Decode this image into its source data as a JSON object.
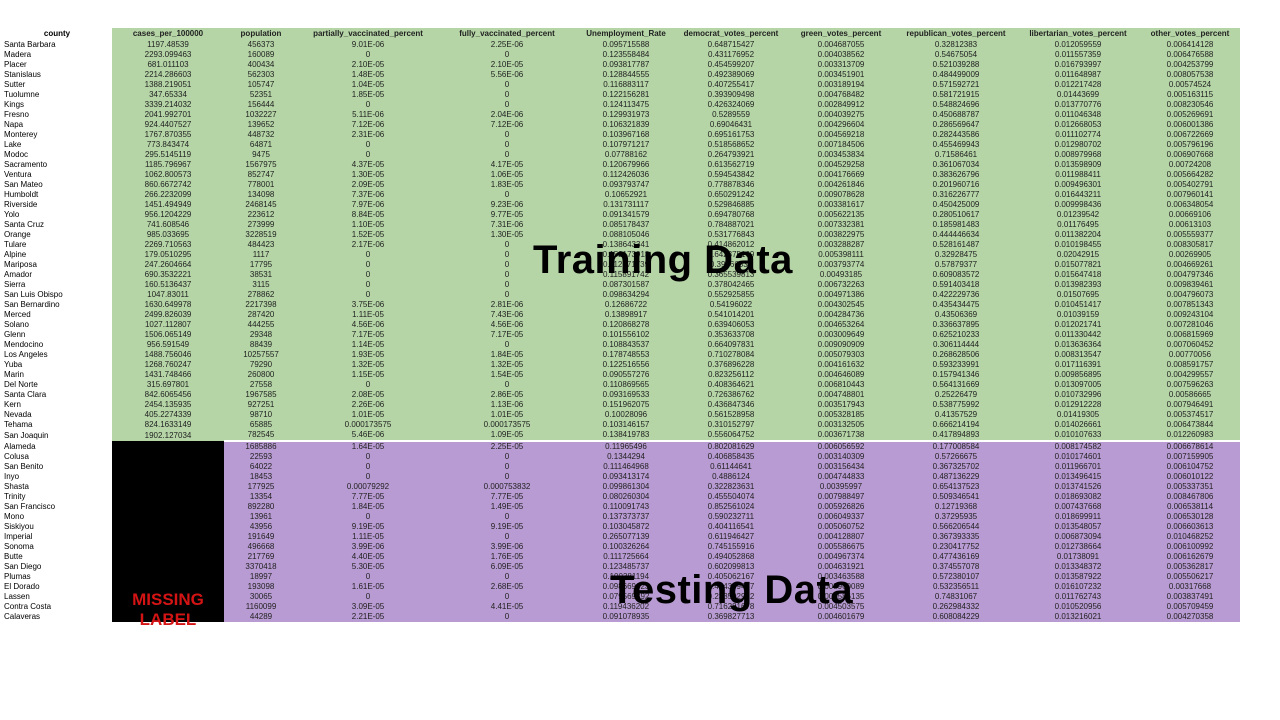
{
  "columns": [
    "county",
    "cases_per_100000",
    "population",
    "partially_vaccinated_percent",
    "fully_vaccinated_percent",
    "Unemployment_Rate",
    "democrat_votes_percent",
    "green_votes_percent",
    "republican_votes_percent",
    "libertarian_votes_percent",
    "other_votes_percent"
  ],
  "training_label": "Training Data",
  "testing_label": "Testing Data",
  "missing_label": "MISSING LABEL",
  "colors": {
    "training": "#b5d5a6",
    "testing": "#b89bd2",
    "missing_block": "#000000",
    "missing_text": "#d41414"
  },
  "training_rows": [
    [
      "Santa Barbara",
      "1197.48539",
      "456373",
      "9.01E-06",
      "2.25E-06",
      "0.095715588",
      "0.648715427",
      "0.004687055",
      "0.32812383",
      "0.012059559",
      "0.006414128"
    ],
    [
      "Madera",
      "2293.099463",
      "160089",
      "0",
      "0",
      "0.123558484",
      "0.431176952",
      "0.004038562",
      "0.54675054",
      "0.011557359",
      "0.006476588"
    ],
    [
      "Placer",
      "681.011103",
      "400434",
      "2.10E-05",
      "2.10E-05",
      "0.093817787",
      "0.454599207",
      "0.003313709",
      "0.521039288",
      "0.016793997",
      "0.004253799"
    ],
    [
      "Stanislaus",
      "2214.286603",
      "562303",
      "1.48E-05",
      "5.56E-06",
      "0.128844555",
      "0.492389069",
      "0.003451901",
      "0.484499009",
      "0.011648987",
      "0.008057538"
    ],
    [
      "Sutter",
      "1388.219051",
      "105747",
      "1.04E-05",
      "0",
      "0.116883117",
      "0.407255417",
      "0.003189194",
      "0.571592721",
      "0.012217428",
      "0.00574524"
    ],
    [
      "Tuolumne",
      "347.65334",
      "52351",
      "1.85E-05",
      "0",
      "0.122156281",
      "0.393909498",
      "0.004768482",
      "0.581721915",
      "0.01443699",
      "0.005163115"
    ],
    [
      "Kings",
      "3339.214032",
      "156444",
      "0",
      "0",
      "0.124113475",
      "0.426324069",
      "0.002849912",
      "0.548824696",
      "0.013770776",
      "0.008230546"
    ],
    [
      "Fresno",
      "2041.992701",
      "1032227",
      "5.11E-06",
      "2.04E-06",
      "0.129931973",
      "0.5289559",
      "0.004039275",
      "0.450688787",
      "0.011046348",
      "0.005269691"
    ],
    [
      "Napa",
      "924.4407527",
      "139652",
      "7.12E-06",
      "7.12E-06",
      "0.106321839",
      "0.69046431",
      "0.004296604",
      "0.286569647",
      "0.012668053",
      "0.006001386"
    ],
    [
      "Monterey",
      "1767.870355",
      "448732",
      "2.31E-06",
      "0",
      "0.103967168",
      "0.695161753",
      "0.004569218",
      "0.282443586",
      "0.011102774",
      "0.006722669"
    ],
    [
      "Lake",
      "773.843474",
      "64871",
      "0",
      "0",
      "0.107971217",
      "0.518568652",
      "0.007184506",
      "0.455469943",
      "0.012980702",
      "0.005796196"
    ],
    [
      "Modoc",
      "295.5145119",
      "9475",
      "0",
      "0",
      "0.07788162",
      "0.264793921",
      "0.003453834",
      "0.71586461",
      "0.008979968",
      "0.006907668"
    ],
    [
      "Sacramento",
      "1185.796967",
      "1567975",
      "4.37E-05",
      "4.17E-05",
      "0.120679966",
      "0.613562719",
      "0.004529258",
      "0.361067034",
      "0.013598909",
      "0.00724208"
    ],
    [
      "Ventura",
      "1062.800573",
      "852747",
      "1.30E-05",
      "1.06E-05",
      "0.112426036",
      "0.594543842",
      "0.004176669",
      "0.383626796",
      "0.011988411",
      "0.005664282"
    ],
    [
      "San Mateo",
      "860.6672742",
      "778001",
      "2.09E-05",
      "1.83E-05",
      "0.093793747",
      "0.778878346",
      "0.004261846",
      "0.201960716",
      "0.009496301",
      "0.005402791"
    ],
    [
      "Humboldt",
      "266.2232099",
      "134098",
      "7.37E-06",
      "0",
      "0.10652921",
      "0.650291242",
      "0.009078628",
      "0.316226777",
      "0.016443211",
      "0.007960141"
    ],
    [
      "Riverside",
      "1451.494949",
      "2468145",
      "7.97E-06",
      "9.23E-06",
      "0.131731117",
      "0.529846885",
      "0.003381617",
      "0.450425009",
      "0.009998436",
      "0.006348054"
    ],
    [
      "Yolo",
      "956.1204229",
      "223612",
      "8.84E-05",
      "9.77E-05",
      "0.091341579",
      "0.694780768",
      "0.005622135",
      "0.280510617",
      "0.01239542",
      "0.00669106"
    ],
    [
      "Santa Cruz",
      "741.608546",
      "273999",
      "1.10E-05",
      "7.31E-06",
      "0.085178437",
      "0.784887021",
      "0.007332381",
      "0.185981483",
      "0.01176495",
      "0.00613103"
    ],
    [
      "Orange",
      "985.033695",
      "3228519",
      "1.52E-05",
      "1.30E-05",
      "0.088105046",
      "0.531776843",
      "0.003822975",
      "0.444446634",
      "0.011382204",
      "0.005559377"
    ],
    [
      "Tulare",
      "2269.710563",
      "484423",
      "2.17E-06",
      "0",
      "0.138643341",
      "0.414862012",
      "0.003288287",
      "0.528161487",
      "0.010198455",
      "0.008305817"
    ],
    [
      "Alpine",
      "179.0510295",
      "1117",
      "0",
      "0",
      "0.152173913",
      "0.642375169",
      "0.005398111",
      "0.32928475",
      "0.02042915",
      "0.00269905"
    ],
    [
      "Mariposa",
      "247.2604664",
      "17795",
      "0",
      "0",
      "0.112771739",
      "0.39766537",
      "0.003793774",
      "0.57879377",
      "0.015077821",
      "0.004669261"
    ],
    [
      "Amador",
      "690.3532221",
      "38531",
      "0",
      "0",
      "0.115891742",
      "0.365539813",
      "0.00493185",
      "0.609083572",
      "0.015647418",
      "0.004797346"
    ],
    [
      "Sierra",
      "160.5136437",
      "3115",
      "0",
      "0",
      "0.087301587",
      "0.378042465",
      "0.006732263",
      "0.591403418",
      "0.013982393",
      "0.009839461"
    ],
    [
      "San Luis Obispo",
      "1047.83011",
      "278862",
      "0",
      "0",
      "0.098634294",
      "0.552925855",
      "0.004971386",
      "0.422229736",
      "0.01507695",
      "0.004796073"
    ],
    [
      "San Bernardino",
      "1630.649978",
      "2217398",
      "3.75E-06",
      "2.81E-06",
      "0.12686722",
      "0.54196022",
      "0.004302545",
      "0.435434475",
      "0.010451417",
      "0.007851343"
    ],
    [
      "Merced",
      "2499.826039",
      "287420",
      "1.11E-05",
      "7.43E-06",
      "0.13898917",
      "0.541014201",
      "0.004284736",
      "0.43506369",
      "0.01039159",
      "0.009243104"
    ],
    [
      "Solano",
      "1027.112807",
      "444255",
      "4.56E-06",
      "4.56E-06",
      "0.120868278",
      "0.639406053",
      "0.004653264",
      "0.336637895",
      "0.012021741",
      "0.007281046"
    ],
    [
      "Glenn",
      "1506.065149",
      "29348",
      "7.17E-05",
      "7.17E-05",
      "0.101556102",
      "0.353633708",
      "0.003009649",
      "0.625210233",
      "0.011330442",
      "0.006815969"
    ],
    [
      "Mendocino",
      "956.591549",
      "88439",
      "1.14E-05",
      "0",
      "0.108843537",
      "0.664097831",
      "0.009090909",
      "0.306114444",
      "0.013636364",
      "0.007060452"
    ],
    [
      "Los Angeles",
      "1488.756046",
      "10257557",
      "1.93E-05",
      "1.84E-05",
      "0.178748553",
      "0.710278084",
      "0.005079303",
      "0.268628506",
      "0.008313547",
      "0.00770056"
    ],
    [
      "Yuba",
      "1268.760247",
      "79290",
      "1.32E-05",
      "1.32E-05",
      "0.122516556",
      "0.376896228",
      "0.004161632",
      "0.593233991",
      "0.017116391",
      "0.008591757"
    ],
    [
      "Marin",
      "1431.748466",
      "260800",
      "1.15E-05",
      "1.54E-05",
      "0.090557276",
      "0.823256112",
      "0.004646089",
      "0.157941346",
      "0.009856895",
      "0.004299557"
    ],
    [
      "Del Norte",
      "315.697801",
      "27558",
      "0",
      "0",
      "0.110869565",
      "0.408364621",
      "0.006810443",
      "0.564131669",
      "0.013097005",
      "0.007596263"
    ],
    [
      "Santa Clara",
      "842.6065456",
      "1967585",
      "2.08E-05",
      "2.86E-05",
      "0.093169533",
      "0.726386762",
      "0.004748801",
      "0.25226479",
      "0.010732996",
      "0.00586665"
    ],
    [
      "Kern",
      "2454.135935",
      "927251",
      "2.26E-06",
      "1.13E-06",
      "0.151962075",
      "0.436847346",
      "0.003517943",
      "0.538775992",
      "0.012912228",
      "0.007946491"
    ],
    [
      "Nevada",
      "405.2274339",
      "98710",
      "1.01E-05",
      "1.01E-05",
      "0.10028096",
      "0.561528958",
      "0.005328185",
      "0.41357529",
      "0.01419305",
      "0.005374517"
    ],
    [
      "Tehama",
      "824.1633149",
      "65885",
      "0.000173575",
      "0.000173575",
      "0.103146157",
      "0.310152797",
      "0.003132505",
      "0.666214194",
      "0.014026661",
      "0.006473844"
    ],
    [
      "San Joaquin",
      "1902.127034",
      "782545",
      "5.46E-06",
      "1.09E-05",
      "0.138419783",
      "0.556064752",
      "0.003671738",
      "0.417894893",
      "0.010107633",
      "0.012260983"
    ]
  ],
  "testing_rows": [
    [
      "Alameda",
      "",
      "1685886",
      "1.64E-05",
      "2.25E-05",
      "0.11965496",
      "0.802081629",
      "0.006056592",
      "0.177008584",
      "0.008174582",
      "0.006678614"
    ],
    [
      "Colusa",
      "",
      "22593",
      "0",
      "0",
      "0.1344294",
      "0.406858435",
      "0.003140309",
      "0.57266675",
      "0.010174601",
      "0.007159905"
    ],
    [
      "San Benito",
      "",
      "64022",
      "0",
      "0",
      "0.111464968",
      "0.61144641",
      "0.003156434",
      "0.367325702",
      "0.011966701",
      "0.006104752"
    ],
    [
      "Inyo",
      "",
      "18453",
      "0",
      "0",
      "0.093413174",
      "0.4886124",
      "0.004744833",
      "0.487136229",
      "0.013496415",
      "0.006010122"
    ],
    [
      "Shasta",
      "",
      "177925",
      "0.00079292",
      "0.000753832",
      "0.099861304",
      "0.322823631",
      "0.00395997",
      "0.654137523",
      "0.013741526",
      "0.005337351"
    ],
    [
      "Trinity",
      "",
      "13354",
      "7.77E-05",
      "7.77E-05",
      "0.080260304",
      "0.455504074",
      "0.007988497",
      "0.509346541",
      "0.018693082",
      "0.008467806"
    ],
    [
      "San Francisco",
      "",
      "892280",
      "1.84E-05",
      "1.49E-05",
      "0.110091743",
      "0.852561024",
      "0.005926826",
      "0.12719368",
      "0.007437668",
      "0.006538114"
    ],
    [
      "Mono",
      "",
      "13961",
      "0",
      "0",
      "0.137373737",
      "0.590232711",
      "0.006049337",
      "0.37295935",
      "0.018699911",
      "0.006530128"
    ],
    [
      "Siskiyou",
      "",
      "43956",
      "9.19E-05",
      "9.19E-05",
      "0.103045872",
      "0.404116541",
      "0.005060752",
      "0.566206544",
      "0.013548057",
      "0.006603613"
    ],
    [
      "Imperial",
      "",
      "191649",
      "1.11E-05",
      "0",
      "0.265077139",
      "0.611946427",
      "0.004128807",
      "0.367393335",
      "0.006873094",
      "0.010468252"
    ],
    [
      "Sonoma",
      "",
      "496668",
      "3.99E-06",
      "3.99E-06",
      "0.100326264",
      "0.745155916",
      "0.005586675",
      "0.230417752",
      "0.012738664",
      "0.006100992"
    ],
    [
      "Butte",
      "",
      "217769",
      "4.40E-05",
      "1.76E-05",
      "0.111725664",
      "0.494052868",
      "0.004967374",
      "0.477436169",
      "0.01738091",
      "0.006162679"
    ],
    [
      "San Diego",
      "",
      "3370418",
      "5.30E-05",
      "6.09E-05",
      "0.123485737",
      "0.602099813",
      "0.004631921",
      "0.374557078",
      "0.013348372",
      "0.005362817"
    ],
    [
      "Plumas",
      "",
      "18997",
      "0",
      "0",
      "0.100381194",
      "0.405062167",
      "0.003463588",
      "0.572380107",
      "0.013587922",
      "0.005506217"
    ],
    [
      "El Dorado",
      "",
      "193098",
      "1.61E-05",
      "2.68E-05",
      "0.098669623",
      "0.444399487",
      "0.003960089",
      "0.532356511",
      "0.016107232",
      "0.00317668"
    ],
    [
      "Lassen",
      "",
      "30065",
      "0",
      "0",
      "0.079569892",
      "0.233502962",
      "0.002586135",
      "0.74831067",
      "0.011762743",
      "0.003837491"
    ],
    [
      "Contra Costa",
      "",
      "1160099",
      "3.09E-05",
      "4.41E-05",
      "0.119436202",
      "0.716281678",
      "0.004503575",
      "0.262984332",
      "0.010520956",
      "0.005709459"
    ],
    [
      "Calaveras",
      "",
      "44289",
      "2.21E-05",
      "0",
      "0.091078935",
      "0.369827713",
      "0.004601679",
      "0.608084229",
      "0.013216021",
      "0.004270358"
    ]
  ]
}
